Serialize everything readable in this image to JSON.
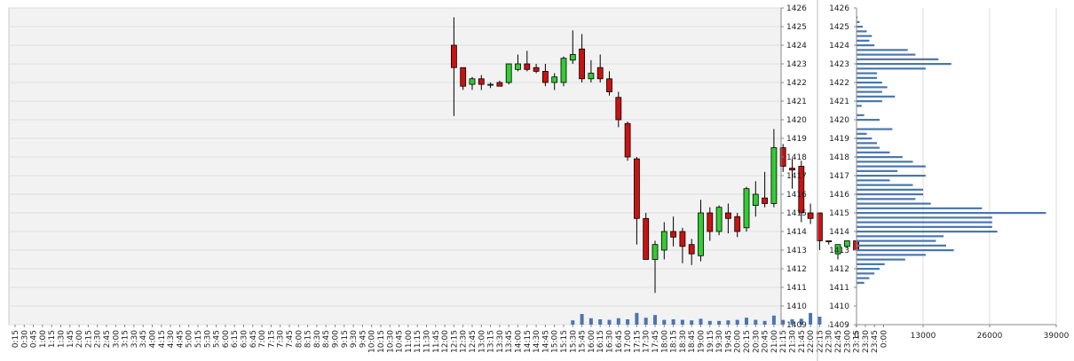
{
  "colors": {
    "up_candle": "#33cc33",
    "down_candle": "#cc1111",
    "volume_bar": "#4a76b0",
    "profile_bar": "#4a76b0",
    "plot_bg": "#f2f2f2",
    "grid": "#dddddd"
  },
  "chart_data": [
    {
      "type": "candlestick",
      "title": "",
      "xlabel": "",
      "ylabel": "",
      "ylim": [
        1409,
        1426
      ],
      "y_ticks": [
        "1409",
        "1410",
        "1411",
        "1412",
        "1413",
        "1414",
        "1415",
        "1416",
        "1417",
        "1418",
        "1419",
        "1420",
        "1421",
        "1422",
        "1423",
        "1424",
        "1425",
        "1426"
      ],
      "x_ticks": [
        "0:15",
        "0:30",
        "0:45",
        "1:00",
        "1:15",
        "1:30",
        "1:45",
        "2:00",
        "2:15",
        "2:30",
        "2:45",
        "3:00",
        "3:15",
        "3:30",
        "3:45",
        "4:00",
        "4:15",
        "4:30",
        "4:45",
        "5:00",
        "5:15",
        "5:30",
        "5:45",
        "6:00",
        "6:15",
        "6:30",
        "6:45",
        "7:00",
        "7:15",
        "7:30",
        "7:45",
        "8:00",
        "8:15",
        "8:30",
        "8:45",
        "9:00",
        "9:15",
        "9:30",
        "9:45",
        "10:00",
        "10:15",
        "10:30",
        "10:45",
        "11:00",
        "11:15",
        "11:30",
        "11:45",
        "12:00",
        "12:15",
        "12:30",
        "12:45",
        "13:00",
        "13:15",
        "13:30",
        "13:45",
        "14:00",
        "14:15",
        "14:30",
        "14:45",
        "15:00",
        "15:15",
        "15:30",
        "15:45",
        "16:00",
        "16:15",
        "16:30",
        "16:45",
        "17:00",
        "17:15",
        "17:30",
        "17:45",
        "18:00",
        "18:15",
        "18:30",
        "18:45",
        "19:00",
        "19:15",
        "19:30",
        "19:45",
        "20:00",
        "20:15",
        "20:30",
        "20:45",
        "21:00",
        "21:15",
        "21:30",
        "21:45",
        "22:00",
        "22:15",
        "22:30",
        "22:45",
        "23:00",
        "23:15",
        "23:30",
        "23:45",
        "0:00"
      ],
      "candles": [
        {
          "t": "12:15",
          "o": 1424.0,
          "h": 1425.5,
          "l": 1420.2,
          "c": 1422.8
        },
        {
          "t": "12:30",
          "o": 1422.8,
          "h": 1422.8,
          "l": 1421.6,
          "c": 1421.8
        },
        {
          "t": "12:45",
          "o": 1421.9,
          "h": 1422.3,
          "l": 1421.6,
          "c": 1422.2
        },
        {
          "t": "13:00",
          "o": 1422.2,
          "h": 1422.4,
          "l": 1421.6,
          "c": 1421.9
        },
        {
          "t": "13:15",
          "o": 1421.9,
          "h": 1422.0,
          "l": 1421.7,
          "c": 1421.9
        },
        {
          "t": "13:30",
          "o": 1422.0,
          "h": 1422.1,
          "l": 1421.8,
          "c": 1421.8
        },
        {
          "t": "13:45",
          "o": 1422.0,
          "h": 1423.0,
          "l": 1421.9,
          "c": 1423.0
        },
        {
          "t": "14:00",
          "o": 1422.7,
          "h": 1423.5,
          "l": 1422.6,
          "c": 1423.0
        },
        {
          "t": "14:15",
          "o": 1423.0,
          "h": 1423.7,
          "l": 1422.6,
          "c": 1422.7
        },
        {
          "t": "14:30",
          "o": 1422.8,
          "h": 1423.0,
          "l": 1422.5,
          "c": 1422.6
        },
        {
          "t": "14:45",
          "o": 1422.6,
          "h": 1423.0,
          "l": 1421.8,
          "c": 1422.0
        },
        {
          "t": "15:00",
          "o": 1422.0,
          "h": 1422.5,
          "l": 1421.6,
          "c": 1422.3
        },
        {
          "t": "15:15",
          "o": 1422.0,
          "h": 1423.4,
          "l": 1421.8,
          "c": 1423.3
        },
        {
          "t": "15:30",
          "o": 1423.2,
          "h": 1424.8,
          "l": 1423.0,
          "c": 1423.5
        },
        {
          "t": "15:45",
          "o": 1423.8,
          "h": 1424.6,
          "l": 1422.0,
          "c": 1422.2
        },
        {
          "t": "16:00",
          "o": 1422.2,
          "h": 1423.2,
          "l": 1422.0,
          "c": 1422.5
        },
        {
          "t": "16:15",
          "o": 1422.8,
          "h": 1423.5,
          "l": 1422.0,
          "c": 1422.2
        },
        {
          "t": "16:30",
          "o": 1422.2,
          "h": 1422.6,
          "l": 1421.3,
          "c": 1421.5
        },
        {
          "t": "16:45",
          "o": 1421.2,
          "h": 1421.5,
          "l": 1419.6,
          "c": 1420.0
        },
        {
          "t": "17:00",
          "o": 1419.8,
          "h": 1419.9,
          "l": 1417.8,
          "c": 1418.0
        },
        {
          "t": "17:15",
          "o": 1417.9,
          "h": 1418.0,
          "l": 1413.3,
          "c": 1414.7
        },
        {
          "t": "17:30",
          "o": 1414.7,
          "h": 1415.0,
          "l": 1412.5,
          "c": 1412.5
        },
        {
          "t": "17:45",
          "o": 1412.5,
          "h": 1413.5,
          "l": 1410.7,
          "c": 1413.3
        },
        {
          "t": "18:00",
          "o": 1413.0,
          "h": 1414.5,
          "l": 1412.5,
          "c": 1414.0
        },
        {
          "t": "18:15",
          "o": 1414.0,
          "h": 1414.8,
          "l": 1413.2,
          "c": 1413.7
        },
        {
          "t": "18:30",
          "o": 1414.0,
          "h": 1414.2,
          "l": 1412.3,
          "c": 1413.2
        },
        {
          "t": "18:45",
          "o": 1413.3,
          "h": 1413.6,
          "l": 1412.2,
          "c": 1412.8
        },
        {
          "t": "19:00",
          "o": 1412.7,
          "h": 1415.7,
          "l": 1412.4,
          "c": 1415.0
        },
        {
          "t": "19:15",
          "o": 1415.0,
          "h": 1415.3,
          "l": 1413.5,
          "c": 1414.0
        },
        {
          "t": "19:30",
          "o": 1414.0,
          "h": 1415.4,
          "l": 1413.8,
          "c": 1415.3
        },
        {
          "t": "19:45",
          "o": 1415.0,
          "h": 1415.5,
          "l": 1413.9,
          "c": 1414.7
        },
        {
          "t": "20:00",
          "o": 1414.8,
          "h": 1415.0,
          "l": 1413.7,
          "c": 1414.0
        },
        {
          "t": "20:15",
          "o": 1414.2,
          "h": 1416.4,
          "l": 1414.0,
          "c": 1416.3
        },
        {
          "t": "20:30",
          "o": 1415.4,
          "h": 1416.7,
          "l": 1414.8,
          "c": 1416.0
        },
        {
          "t": "20:45",
          "o": 1415.8,
          "h": 1417.2,
          "l": 1415.3,
          "c": 1415.5
        },
        {
          "t": "21:00",
          "o": 1415.5,
          "h": 1419.5,
          "l": 1415.3,
          "c": 1418.5
        },
        {
          "t": "21:15",
          "o": 1418.5,
          "h": 1418.7,
          "l": 1417.2,
          "c": 1417.5
        },
        {
          "t": "21:30",
          "o": 1417.4,
          "h": 1417.9,
          "l": 1416.3,
          "c": 1417.3
        },
        {
          "t": "21:45",
          "o": 1417.5,
          "h": 1417.8,
          "l": 1414.5,
          "c": 1415.0
        },
        {
          "t": "22:00",
          "o": 1415.0,
          "h": 1415.5,
          "l": 1414.4,
          "c": 1414.7
        },
        {
          "t": "22:15",
          "o": 1415.0,
          "h": 1415.0,
          "l": 1413.0,
          "c": 1413.5
        },
        {
          "t": "22:30",
          "o": 1413.5,
          "h": 1413.5,
          "l": 1413.3,
          "c": 1413.45
        },
        {
          "t": "22:45",
          "o": 1412.8,
          "h": 1413.3,
          "l": 1412.5,
          "c": 1413.3
        },
        {
          "t": "23:00",
          "o": 1413.2,
          "h": 1413.5,
          "l": 1413.1,
          "c": 1413.5
        },
        {
          "t": "23:15",
          "o": 1413.5,
          "h": 1413.5,
          "l": 1413.0,
          "c": 1413.0
        }
      ],
      "volume_series": [
        {
          "t": "15:30",
          "v": 8
        },
        {
          "t": "15:45",
          "v": 20
        },
        {
          "t": "16:00",
          "v": 12
        },
        {
          "t": "16:15",
          "v": 10
        },
        {
          "t": "16:30",
          "v": 9
        },
        {
          "t": "16:45",
          "v": 12
        },
        {
          "t": "17:00",
          "v": 10
        },
        {
          "t": "17:15",
          "v": 22
        },
        {
          "t": "17:30",
          "v": 13
        },
        {
          "t": "17:45",
          "v": 18
        },
        {
          "t": "18:00",
          "v": 9
        },
        {
          "t": "18:15",
          "v": 10
        },
        {
          "t": "18:30",
          "v": 9
        },
        {
          "t": "18:45",
          "v": 8
        },
        {
          "t": "19:00",
          "v": 11
        },
        {
          "t": "19:15",
          "v": 7
        },
        {
          "t": "19:30",
          "v": 7
        },
        {
          "t": "19:45",
          "v": 8
        },
        {
          "t": "20:00",
          "v": 9
        },
        {
          "t": "20:15",
          "v": 13
        },
        {
          "t": "20:30",
          "v": 9
        },
        {
          "t": "20:45",
          "v": 7
        },
        {
          "t": "21:00",
          "v": 17
        },
        {
          "t": "21:15",
          "v": 9
        },
        {
          "t": "21:30",
          "v": 10
        },
        {
          "t": "21:45",
          "v": 11
        },
        {
          "t": "22:00",
          "v": 22
        },
        {
          "t": "22:15",
          "v": 15
        }
      ]
    },
    {
      "type": "bar",
      "orientation": "horizontal",
      "title": "",
      "xlabel": "",
      "ylabel": "",
      "ylim": [
        1409,
        1426
      ],
      "xlim": [
        0,
        39000
      ],
      "x_ticks": [
        "0",
        "13000",
        "26000",
        "39000"
      ],
      "y_ticks": [
        "1409",
        "1410",
        "1411",
        "1412",
        "1413",
        "1414",
        "1415",
        "1416",
        "1417",
        "1418",
        "1419",
        "1420",
        "1421",
        "1422",
        "1423",
        "1424",
        "1425",
        "1426"
      ],
      "levels": [
        {
          "y": 1425.5,
          "v": 200
        },
        {
          "y": 1425.25,
          "v": 600
        },
        {
          "y": 1425.0,
          "v": 1200
        },
        {
          "y": 1424.75,
          "v": 2000
        },
        {
          "y": 1424.5,
          "v": 3000
        },
        {
          "y": 1424.25,
          "v": 2500
        },
        {
          "y": 1424.0,
          "v": 3500
        },
        {
          "y": 1423.75,
          "v": 10000
        },
        {
          "y": 1423.5,
          "v": 11500
        },
        {
          "y": 1423.25,
          "v": 16000
        },
        {
          "y": 1423.0,
          "v": 18500
        },
        {
          "y": 1422.75,
          "v": 13500
        },
        {
          "y": 1422.5,
          "v": 4000
        },
        {
          "y": 1422.25,
          "v": 4000
        },
        {
          "y": 1422.0,
          "v": 5000
        },
        {
          "y": 1421.75,
          "v": 6000
        },
        {
          "y": 1421.5,
          "v": 5000
        },
        {
          "y": 1421.25,
          "v": 7500
        },
        {
          "y": 1421.0,
          "v": 5000
        },
        {
          "y": 1420.75,
          "v": 1000
        },
        {
          "y": 1420.5,
          "v": 0
        },
        {
          "y": 1420.25,
          "v": 1500
        },
        {
          "y": 1420.0,
          "v": 4500
        },
        {
          "y": 1419.75,
          "v": 0
        },
        {
          "y": 1419.5,
          "v": 7000
        },
        {
          "y": 1419.25,
          "v": 2000
        },
        {
          "y": 1419.0,
          "v": 3000
        },
        {
          "y": 1418.75,
          "v": 4000
        },
        {
          "y": 1418.5,
          "v": 4500
        },
        {
          "y": 1418.25,
          "v": 6500
        },
        {
          "y": 1418.0,
          "v": 9000
        },
        {
          "y": 1417.75,
          "v": 11000
        },
        {
          "y": 1417.5,
          "v": 13500
        },
        {
          "y": 1417.25,
          "v": 8000
        },
        {
          "y": 1417.0,
          "v": 13500
        },
        {
          "y": 1416.75,
          "v": 6500
        },
        {
          "y": 1416.5,
          "v": 11000
        },
        {
          "y": 1416.25,
          "v": 13000
        },
        {
          "y": 1416.0,
          "v": 13000
        },
        {
          "y": 1415.75,
          "v": 11500
        },
        {
          "y": 1415.5,
          "v": 14500
        },
        {
          "y": 1415.25,
          "v": 24500
        },
        {
          "y": 1415.0,
          "v": 37000
        },
        {
          "y": 1414.75,
          "v": 26500
        },
        {
          "y": 1414.5,
          "v": 26500
        },
        {
          "y": 1414.25,
          "v": 26500
        },
        {
          "y": 1414.0,
          "v": 27500
        },
        {
          "y": 1413.75,
          "v": 17000
        },
        {
          "y": 1413.5,
          "v": 15500
        },
        {
          "y": 1413.25,
          "v": 17500
        },
        {
          "y": 1413.0,
          "v": 19000
        },
        {
          "y": 1412.75,
          "v": 13500
        },
        {
          "y": 1412.5,
          "v": 9500
        },
        {
          "y": 1412.25,
          "v": 5500
        },
        {
          "y": 1412.0,
          "v": 4500
        },
        {
          "y": 1411.75,
          "v": 3500
        },
        {
          "y": 1411.5,
          "v": 2500
        },
        {
          "y": 1411.25,
          "v": 1500
        }
      ]
    }
  ]
}
